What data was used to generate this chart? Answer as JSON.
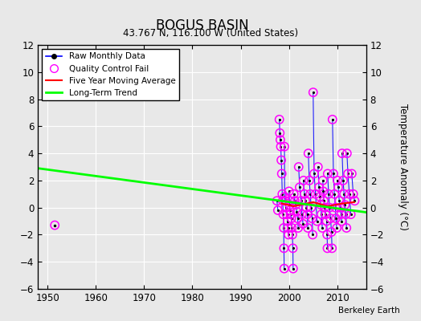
{
  "title": "BOGUS BASIN",
  "subtitle": "43.767 N, 116.100 W (United States)",
  "ylabel": "Temperature Anomaly (°C)",
  "credit": "Berkeley Earth",
  "xlim": [
    1948,
    2016
  ],
  "ylim": [
    -6,
    12
  ],
  "yticks": [
    -6,
    -4,
    -2,
    0,
    2,
    4,
    6,
    8,
    10,
    12
  ],
  "xticks": [
    1950,
    1960,
    1970,
    1980,
    1990,
    2000,
    2010
  ],
  "bg_color": "#e8e8e8",
  "grid_color": "#d0d0d0",
  "trend_x": [
    1948,
    2016
  ],
  "trend_y": [
    2.9,
    -0.35
  ],
  "early_qc_x": [
    1951.5
  ],
  "early_qc_y": [
    -1.3
  ],
  "raw_segments": {
    "years": [
      1997,
      1998,
      1999,
      2000,
      2001,
      2002,
      2003,
      2004,
      2005,
      2006,
      2007,
      2008,
      2009,
      2010,
      2011,
      2012,
      2013
    ],
    "n_months": [
      2,
      12,
      8,
      10,
      6,
      5,
      6,
      6,
      4,
      6,
      8,
      6,
      6,
      6,
      6,
      4,
      3
    ]
  },
  "seed": 15
}
